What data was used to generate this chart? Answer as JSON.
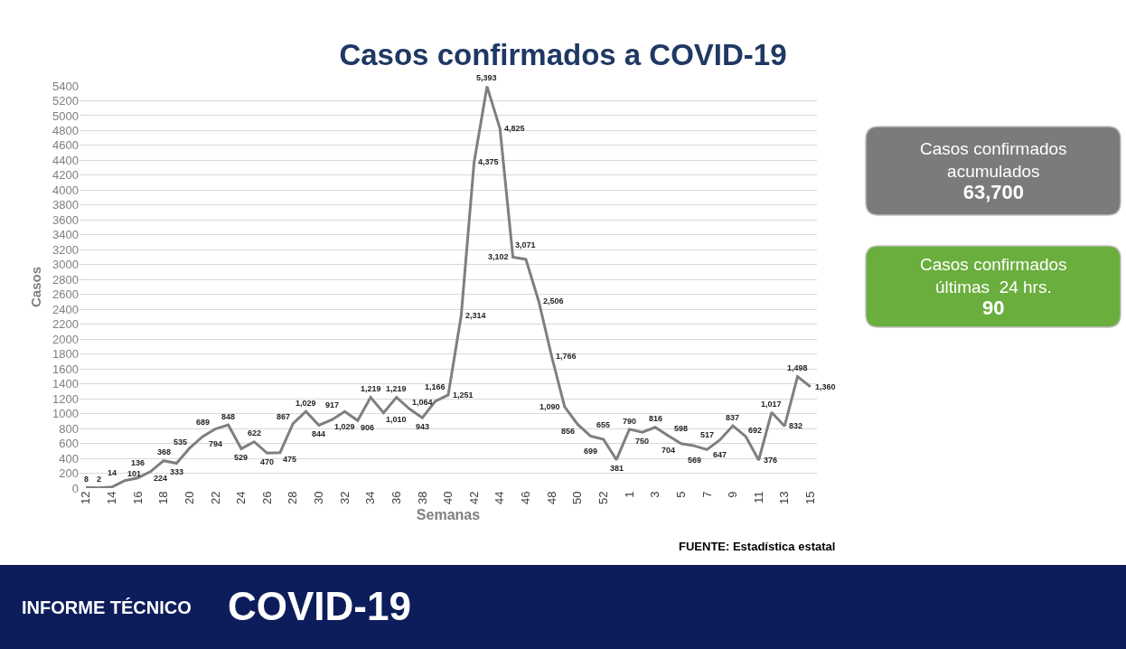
{
  "chart_data": {
    "type": "line",
    "title": "Casos confirmados a COVID-19",
    "xlabel": "Semanas",
    "ylabel": "Casos",
    "categories": [
      "12",
      null,
      "14",
      null,
      "16",
      null,
      "18",
      null,
      "20",
      null,
      "22",
      null,
      "24",
      null,
      "26",
      null,
      "28",
      null,
      "30",
      null,
      "32",
      null,
      "34",
      null,
      "36",
      null,
      "38",
      null,
      "40",
      null,
      "42",
      null,
      "44",
      null,
      "46",
      null,
      "48",
      null,
      "50",
      null,
      "52",
      null,
      "1",
      null,
      "3",
      null,
      "5",
      null,
      "7",
      null,
      "9",
      null,
      "11",
      null,
      "13",
      null,
      "15"
    ],
    "values": [
      8,
      2,
      14,
      101,
      136,
      224,
      368,
      333,
      535,
      689,
      794,
      848,
      529,
      622,
      470,
      475,
      867,
      1029,
      844,
      917,
      1029,
      906,
      1219,
      1010,
      1219,
      1064,
      943,
      1166,
      1251,
      2314,
      4375,
      5393,
      4825,
      3102,
      3071,
      2506,
      1766,
      1090,
      856,
      699,
      655,
      381,
      790,
      750,
      816,
      704,
      598,
      569,
      517,
      647,
      837,
      692,
      376,
      1017,
      832,
      1498,
      1360
    ],
    "value_labels": [
      "8",
      "2",
      "14",
      "101",
      "136",
      "224",
      "368",
      "333",
      "535",
      "689",
      "794",
      "848",
      "529",
      "622",
      "470",
      "475",
      "867",
      "1,029",
      "844",
      "917",
      "1,029",
      "906",
      "1,219",
      "1,010",
      "1,219",
      "1,064",
      "943",
      "1,166",
      "1,251",
      "2,314",
      "4,375",
      "5,393",
      "4,825",
      "3,102",
      "3,071",
      "2,506",
      "1,766",
      "1,090",
      "856",
      "699",
      "655",
      "381",
      "790",
      "750",
      "816",
      "704",
      "598",
      "569",
      "517",
      "647",
      "837",
      "692",
      "376",
      "1,017",
      "832",
      "1,498",
      "1,360"
    ],
    "color": "#7f7f7f",
    "ylim": [
      0,
      5400
    ],
    "yticks": [
      0,
      200,
      400,
      600,
      800,
      1000,
      1200,
      1400,
      1600,
      1800,
      2000,
      2200,
      2400,
      2600,
      2800,
      3000,
      3200,
      3400,
      3600,
      3800,
      4000,
      4200,
      4400,
      4600,
      4800,
      5000,
      5200,
      5400
    ],
    "grid": "y",
    "annotations": [
      "FUENTE: Estadística estatal",
      "Casos confirmados\nacumulados\n63,700",
      "Casos confirmados\núltimas  24 hrs.\n90",
      "INFORME TÉCNICO",
      "COVID-19"
    ]
  }
}
